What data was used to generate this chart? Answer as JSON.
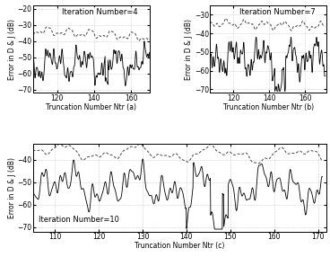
{
  "panel_a": {
    "title": "Iteration Number=4",
    "xlabel": "Truncation Number Ntr (a)",
    "ylabel": "Error in D & J (dB)",
    "xlim": [
      107,
      170
    ],
    "ylim": [
      -72,
      -18
    ],
    "yticks": [
      -70,
      -60,
      -50,
      -40,
      -30,
      -20
    ],
    "xticks": [
      120,
      140,
      160
    ]
  },
  "panel_b": {
    "title": "Iteration Number=7",
    "xlabel": "Truncation Number Ntr (b)",
    "ylabel": "Error in D & J (dB)",
    "xlim": [
      107,
      172
    ],
    "ylim": [
      -72,
      -25
    ],
    "yticks": [
      -70,
      -60,
      -50,
      -40,
      -30
    ],
    "xticks": [
      120,
      140,
      160
    ]
  },
  "panel_c": {
    "title": "Iteration Number=10",
    "xlabel": "Truncation Number Ntr (c)",
    "ylabel": "Error in D & J (dB)",
    "xlim": [
      105,
      172
    ],
    "ylim": [
      -72,
      -33
    ],
    "yticks": [
      -70,
      -60,
      -50,
      -40
    ],
    "xticks": [
      110,
      120,
      130,
      140,
      150,
      160,
      170
    ]
  },
  "line_color_solid": "#000000",
  "line_color_dashed": "#444444",
  "bg_color": "#ffffff",
  "grid_color": "#aaaaaa",
  "fontsize_label": 5.5,
  "fontsize_tick": 5.5,
  "fontsize_annotation": 6.0
}
